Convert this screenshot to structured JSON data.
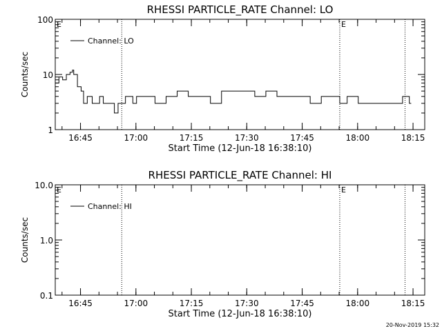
{
  "footer": {
    "timestamp": "20-Nov-2019 15:32"
  },
  "chart_data": [
    {
      "type": "line",
      "title": "RHESSI PARTICLE_RATE Channel: LO",
      "xlabel": "Start Time (12-Jun-18 16:38:10)",
      "ylabel": "Counts/sec",
      "yscale": "log",
      "ylim": [
        1,
        100
      ],
      "yticks": [
        "1",
        "10",
        "100"
      ],
      "xlim_minutes": [
        0,
        100
      ],
      "xticks": [
        "16:45",
        "17:00",
        "17:15",
        "17:30",
        "17:45",
        "18:00",
        "18:15"
      ],
      "event_markers": [
        {
          "label": "E",
          "time": "16:38:10"
        },
        {
          "label": "",
          "time": "16:56:10"
        },
        {
          "label": "E",
          "time": "17:55:10"
        },
        {
          "label": "",
          "time": "18:12:50"
        }
      ],
      "legend": {
        "position": "top-left",
        "entries": [
          "Channel: LO"
        ]
      },
      "series": [
        {
          "name": "Channel: LO",
          "x": [
            "16:38:10",
            "16:39:10",
            "16:40:10",
            "16:41:10",
            "16:42:10",
            "16:42:50",
            "16:43:10",
            "16:44:10",
            "16:45:10",
            "16:45:50",
            "16:46:50",
            "16:48:10",
            "16:49:10",
            "16:50:10",
            "16:51:10",
            "16:52:10",
            "16:53:10",
            "16:54:10",
            "16:55:10",
            "16:56:10",
            "16:57:10",
            "16:58:10",
            "16:59:10",
            "17:00:10",
            "17:02:10",
            "17:05:10",
            "17:08:10",
            "17:11:10",
            "17:14:10",
            "17:17:10",
            "17:20:10",
            "17:23:10",
            "17:26:10",
            "17:29:10",
            "17:32:10",
            "17:35:10",
            "17:38:10",
            "17:41:10",
            "17:44:10",
            "17:47:10",
            "17:50:10",
            "17:53:10",
            "17:55:10",
            "17:57:10",
            "18:00:10",
            "18:03:10",
            "18:06:10",
            "18:08:10",
            "18:10:10",
            "18:12:10",
            "18:14:00"
          ],
          "y": [
            7,
            9,
            8,
            10,
            11,
            12,
            10,
            6,
            5,
            3,
            4,
            3,
            3,
            4,
            3,
            3,
            3,
            2,
            3,
            3,
            4,
            4,
            3,
            4,
            4,
            3,
            4,
            5,
            4,
            4,
            3,
            5,
            5,
            5,
            4,
            5,
            4,
            4,
            4,
            3,
            4,
            4,
            3,
            4,
            3,
            3,
            3,
            3,
            3,
            4,
            3
          ]
        }
      ]
    },
    {
      "type": "line",
      "title": "RHESSI PARTICLE_RATE Channel: HI",
      "xlabel": "Start Time (12-Jun-18 16:38:10)",
      "ylabel": "Counts/sec",
      "yscale": "log",
      "ylim": [
        0.1,
        10
      ],
      "yticks": [
        "0.1",
        "1.0",
        "10.0"
      ],
      "xlim_minutes": [
        0,
        100
      ],
      "xticks": [
        "16:45",
        "17:00",
        "17:15",
        "17:30",
        "17:45",
        "18:00",
        "18:15"
      ],
      "event_markers": [
        {
          "label": "E",
          "time": "16:38:10"
        },
        {
          "label": "",
          "time": "16:56:10"
        },
        {
          "label": "E",
          "time": "17:55:10"
        },
        {
          "label": "",
          "time": "18:12:50"
        }
      ],
      "legend": {
        "position": "top-left",
        "entries": [
          "Channel: HI"
        ]
      },
      "series": [
        {
          "name": "Channel: HI",
          "x": [],
          "y": []
        }
      ]
    }
  ]
}
